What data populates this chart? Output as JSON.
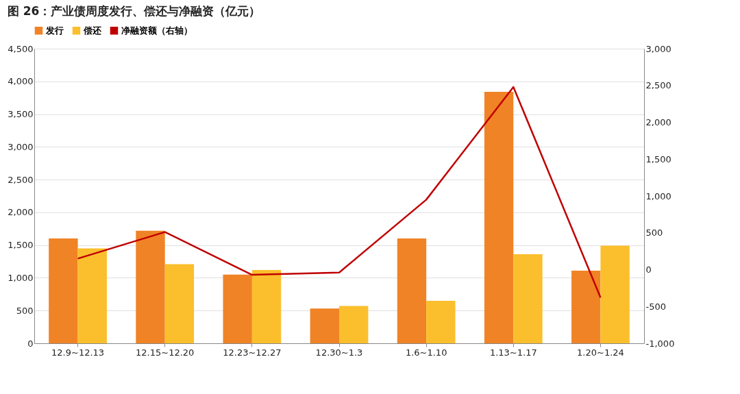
{
  "chart_data": {
    "type": "bar",
    "title": "图 26：产业债周度发行、偿还与净融资（亿元）",
    "categories": [
      "12.9~12.13",
      "12.15~12.20",
      "12.23~12.27",
      "12.30~1.3",
      "1.6~1.10",
      "1.13~1.17",
      "1.20~1.24"
    ],
    "series": [
      {
        "name": "发行",
        "color": "#f08326",
        "values": [
          1600,
          1720,
          1050,
          530,
          1600,
          3840,
          1110
        ]
      },
      {
        "name": "偿还",
        "color": "#fbbf2d",
        "values": [
          1450,
          1210,
          1120,
          570,
          650,
          1360,
          1490
        ]
      },
      {
        "name": "净融资额（右轴）",
        "type": "line",
        "axis": "y2",
        "color": "#c00000",
        "values": [
          150,
          510,
          -70,
          -40,
          950,
          2480,
          -380
        ]
      }
    ],
    "ylim": [
      0,
      4500
    ],
    "yticks": [
      0,
      500,
      {
        "value": 1000,
        "label": "1,000"
      },
      {
        "value": 1500,
        "label": "1,500"
      },
      {
        "value": 2000,
        "label": "2,000"
      },
      {
        "value": 2500,
        "label": "2,500"
      },
      {
        "value": 3000,
        "label": "3,000"
      },
      {
        "value": 3500,
        "label": "3,500"
      },
      {
        "value": 4000,
        "label": "4,000"
      },
      {
        "value": 4500,
        "label": "4,500"
      }
    ],
    "y2lim": [
      -1000,
      3000
    ],
    "y2ticks": [
      {
        "value": -1000,
        "label": "-1,000"
      },
      -500,
      0,
      500,
      {
        "value": 1000,
        "label": "1,000"
      },
      {
        "value": 1500,
        "label": "1,500"
      },
      {
        "value": 2000,
        "label": "2,000"
      },
      {
        "value": 2500,
        "label": "2,500"
      },
      {
        "value": 3000,
        "label": "3,000"
      }
    ],
    "grid": "y",
    "legend": "top",
    "marker": "none",
    "line_style": "solid"
  }
}
